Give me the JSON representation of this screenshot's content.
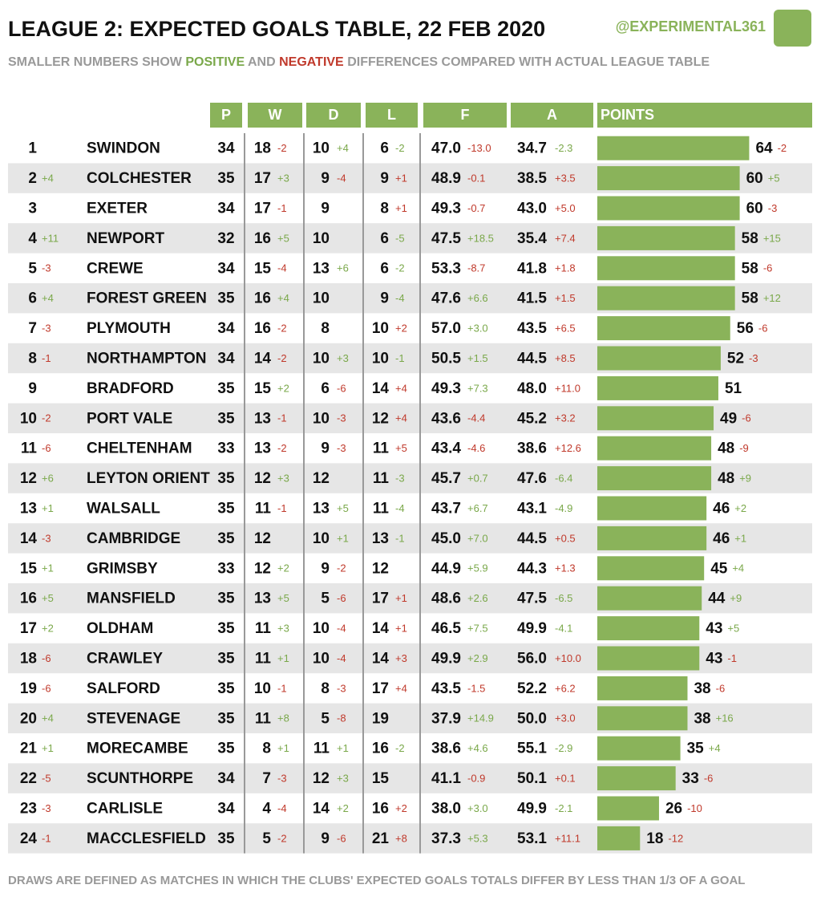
{
  "header": {
    "title": "LEAGUE 2: EXPECTED GOALS TABLE, 22 FEB 2020",
    "handle": "@EXPERIMENTAL361",
    "subtitle": [
      "SMALLER NUMBERS SHOW",
      "POSITIVE",
      "AND",
      "NEGATIVE",
      "DIFFERENCES COMPARED WITH ACTUAL LEAGUE TABLE"
    ]
  },
  "columns": [
    "P",
    "W",
    "D",
    "L",
    "F",
    "A",
    "POINTS"
  ],
  "rows": [
    [
      1,
      null,
      "SWINDON",
      34,
      18,
      "-2",
      10,
      "+4",
      6,
      "-2",
      "47.0",
      "-13.0",
      "34.7",
      "-2.3",
      64,
      "-2"
    ],
    [
      2,
      "+4",
      "COLCHESTER",
      35,
      17,
      "+3",
      9,
      "-4",
      9,
      "+1",
      "48.9",
      "-0.1",
      "38.5",
      "+3.5",
      60,
      "+5"
    ],
    [
      3,
      null,
      "EXETER",
      34,
      17,
      "-1",
      9,
      null,
      8,
      "+1",
      "49.3",
      "-0.7",
      "43.0",
      "+5.0",
      60,
      "-3"
    ],
    [
      4,
      "+11",
      "NEWPORT",
      32,
      16,
      "+5",
      10,
      null,
      6,
      "-5",
      "47.5",
      "+18.5",
      "35.4",
      "+7.4",
      58,
      "+15"
    ],
    [
      5,
      "-3",
      "CREWE",
      34,
      15,
      "-4",
      13,
      "+6",
      6,
      "-2",
      "53.3",
      "-8.7",
      "41.8",
      "+1.8",
      58,
      "-6"
    ],
    [
      6,
      "+4",
      "FOREST GREEN",
      35,
      16,
      "+4",
      10,
      null,
      9,
      "-4",
      "47.6",
      "+6.6",
      "41.5",
      "+1.5",
      58,
      "+12"
    ],
    [
      7,
      "-3",
      "PLYMOUTH",
      34,
      16,
      "-2",
      8,
      null,
      10,
      "+2",
      "57.0",
      "+3.0",
      "43.5",
      "+6.5",
      56,
      "-6"
    ],
    [
      8,
      "-1",
      "NORTHAMPTON",
      34,
      14,
      "-2",
      10,
      "+3",
      10,
      "-1",
      "50.5",
      "+1.5",
      "44.5",
      "+8.5",
      52,
      "-3"
    ],
    [
      9,
      null,
      "BRADFORD",
      35,
      15,
      "+2",
      6,
      "-6",
      14,
      "+4",
      "49.3",
      "+7.3",
      "48.0",
      "+11.0",
      51,
      null
    ],
    [
      10,
      "-2",
      "PORT VALE",
      35,
      13,
      "-1",
      10,
      "-3",
      12,
      "+4",
      "43.6",
      "-4.4",
      "45.2",
      "+3.2",
      49,
      "-6"
    ],
    [
      11,
      "-6",
      "CHELTENHAM",
      33,
      13,
      "-2",
      9,
      "-3",
      11,
      "+5",
      "43.4",
      "-4.6",
      "38.6",
      "+12.6",
      48,
      "-9"
    ],
    [
      12,
      "+6",
      "LEYTON ORIENT",
      35,
      12,
      "+3",
      12,
      null,
      11,
      "-3",
      "45.7",
      "+0.7",
      "47.6",
      "-6.4",
      48,
      "+9"
    ],
    [
      13,
      "+1",
      "WALSALL",
      35,
      11,
      "-1",
      13,
      "+5",
      11,
      "-4",
      "43.7",
      "+6.7",
      "43.1",
      "-4.9",
      46,
      "+2"
    ],
    [
      14,
      "-3",
      "CAMBRIDGE",
      35,
      12,
      null,
      10,
      "+1",
      13,
      "-1",
      "45.0",
      "+7.0",
      "44.5",
      "+0.5",
      46,
      "+1"
    ],
    [
      15,
      "+1",
      "GRIMSBY",
      33,
      12,
      "+2",
      9,
      "-2",
      12,
      null,
      "44.9",
      "+5.9",
      "44.3",
      "+1.3",
      45,
      "+4"
    ],
    [
      16,
      "+5",
      "MANSFIELD",
      35,
      13,
      "+5",
      5,
      "-6",
      17,
      "+1",
      "48.6",
      "+2.6",
      "47.5",
      "-6.5",
      44,
      "+9"
    ],
    [
      17,
      "+2",
      "OLDHAM",
      35,
      11,
      "+3",
      10,
      "-4",
      14,
      "+1",
      "46.5",
      "+7.5",
      "49.9",
      "-4.1",
      43,
      "+5"
    ],
    [
      18,
      "-6",
      "CRAWLEY",
      35,
      11,
      "+1",
      10,
      "-4",
      14,
      "+3",
      "49.9",
      "+2.9",
      "56.0",
      "+10.0",
      43,
      "-1"
    ],
    [
      19,
      "-6",
      "SALFORD",
      35,
      10,
      "-1",
      8,
      "-3",
      17,
      "+4",
      "43.5",
      "-1.5",
      "52.2",
      "+6.2",
      38,
      "-6"
    ],
    [
      20,
      "+4",
      "STEVENAGE",
      35,
      11,
      "+8",
      5,
      "-8",
      19,
      null,
      "37.9",
      "+14.9",
      "50.0",
      "+3.0",
      38,
      "+16"
    ],
    [
      21,
      "+1",
      "MORECAMBE",
      35,
      8,
      "+1",
      11,
      "+1",
      16,
      "-2",
      "38.6",
      "+4.6",
      "55.1",
      "-2.9",
      35,
      "+4"
    ],
    [
      22,
      "-5",
      "SCUNTHORPE",
      34,
      7,
      "-3",
      12,
      "+3",
      15,
      null,
      "41.1",
      "-0.9",
      "50.1",
      "+0.1",
      33,
      "-6"
    ],
    [
      23,
      "-3",
      "CARLISLE",
      34,
      4,
      "-4",
      14,
      "+2",
      16,
      "+2",
      "38.0",
      "+3.0",
      "49.9",
      "-2.1",
      26,
      "-10"
    ],
    [
      24,
      "-1",
      "MACCLESFIELD",
      35,
      5,
      "-2",
      9,
      "-6",
      21,
      "+8",
      "37.3",
      "+5.3",
      "53.1",
      "+11.1",
      18,
      "-12"
    ]
  ],
  "footnote": "DRAWS ARE DEFINED AS MATCHES IN WHICH THE CLUBS' EXPECTED GOALS TOTALS DIFFER BY LESS THAN 1/3 OF A GOAL"
}
